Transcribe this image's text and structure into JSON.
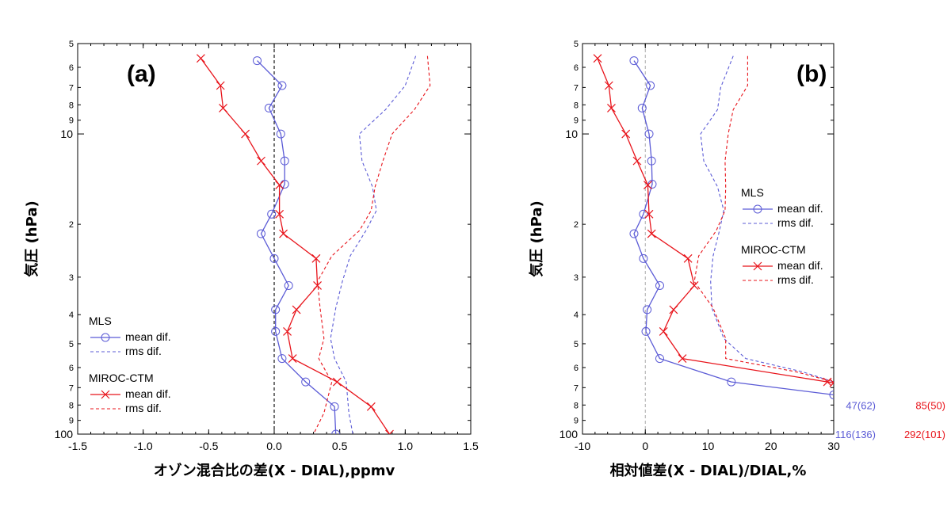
{
  "colors": {
    "mls": "#5b5bd6",
    "miroc": "#e8141b",
    "axis": "#000000"
  },
  "chart_data": [
    {
      "type": "line",
      "panel_label": "(a)",
      "xlabel": "オゾン混合比の差(X - DIAL),ppmv",
      "ylabel": "気圧 (hPa)",
      "xlim": [
        -1.5,
        1.5
      ],
      "x_ticks": [
        "-1.5",
        "-1.0",
        "-0.5",
        "0.0",
        "0.5",
        "1.0",
        "1.5"
      ],
      "x_tick_values": [
        -1.5,
        -1.0,
        -0.5,
        0.0,
        0.5,
        1.0,
        1.5
      ],
      "y_scale": "log",
      "ylim": [
        5,
        100
      ],
      "y_major_ticks": [
        "10",
        "100"
      ],
      "y_minor_ticks": [
        "5",
        "6",
        "7",
        "8",
        "9",
        "2",
        "3",
        "4",
        "5",
        "6",
        "7",
        "8",
        "9"
      ],
      "legend_position": "lower-left",
      "legend": {
        "group1": "MLS",
        "group1_mean": "mean dif.",
        "group1_rms": "rms dif.",
        "group2": "MIROC-CTM",
        "group2_mean": "mean dif.",
        "group2_rms": "rms dif."
      },
      "series": [
        {
          "name": "MLS mean dif.",
          "group": "mls",
          "style": "solid",
          "marker": "circle",
          "points": [
            [
              -0.13,
              5.7
            ],
            [
              0.06,
              6.9
            ],
            [
              -0.04,
              8.2
            ],
            [
              0.05,
              10.0
            ],
            [
              0.08,
              12.3
            ],
            [
              0.08,
              14.7
            ],
            [
              -0.02,
              18.5
            ],
            [
              -0.1,
              21.5
            ],
            [
              0.0,
              26.0
            ],
            [
              0.11,
              32.0
            ],
            [
              0.01,
              38.5
            ],
            [
              0.01,
              45.5
            ],
            [
              0.06,
              56.0
            ],
            [
              0.24,
              67.0
            ],
            [
              0.46,
              81.0
            ],
            [
              0.47,
              100.0
            ]
          ]
        },
        {
          "name": "MLS rms dif.",
          "group": "mls",
          "style": "dashed",
          "points": [
            [
              1.08,
              5.5
            ],
            [
              1.0,
              6.9
            ],
            [
              0.85,
              8.3
            ],
            [
              0.65,
              10.0
            ],
            [
              0.67,
              12.3
            ],
            [
              0.75,
              15.0
            ],
            [
              0.78,
              18.0
            ],
            [
              0.7,
              21.0
            ],
            [
              0.58,
              25.5
            ],
            [
              0.52,
              31.0
            ],
            [
              0.47,
              38.0
            ],
            [
              0.43,
              48.0
            ],
            [
              0.46,
              56.0
            ],
            [
              0.55,
              67.0
            ],
            [
              0.57,
              85.0
            ],
            [
              0.6,
              100.0
            ]
          ]
        },
        {
          "name": "MIROC-CTM mean dif.",
          "group": "miroc",
          "style": "solid",
          "marker": "cross",
          "points": [
            [
              -0.56,
              5.6
            ],
            [
              -0.41,
              6.9
            ],
            [
              -0.39,
              8.2
            ],
            [
              -0.22,
              10.0
            ],
            [
              -0.1,
              12.3
            ],
            [
              0.04,
              14.8
            ],
            [
              0.04,
              18.5
            ],
            [
              0.07,
              21.5
            ],
            [
              0.32,
              26.0
            ],
            [
              0.33,
              32.0
            ],
            [
              0.17,
              38.5
            ],
            [
              0.1,
              45.5
            ],
            [
              0.14,
              56.0
            ],
            [
              0.48,
              67.0
            ],
            [
              0.74,
              81.0
            ],
            [
              0.88,
              100.0
            ]
          ]
        },
        {
          "name": "MIROC-CTM rms dif.",
          "group": "miroc",
          "style": "dashed",
          "points": [
            [
              1.17,
              5.5
            ],
            [
              1.19,
              6.9
            ],
            [
              1.07,
              8.3
            ],
            [
              0.9,
              10.0
            ],
            [
              0.83,
              12.3
            ],
            [
              0.77,
              15.0
            ],
            [
              0.74,
              18.0
            ],
            [
              0.65,
              21.0
            ],
            [
              0.44,
              25.5
            ],
            [
              0.33,
              31.0
            ],
            [
              0.35,
              38.0
            ],
            [
              0.38,
              48.0
            ],
            [
              0.34,
              56.0
            ],
            [
              0.44,
              67.0
            ],
            [
              0.38,
              85.0
            ],
            [
              0.3,
              100.0
            ]
          ]
        }
      ]
    },
    {
      "type": "line",
      "panel_label": "(b)",
      "xlabel": "相対値差(X - DIAL)/DIAL,%",
      "ylabel": "気圧 (hPa)",
      "xlim": [
        -10,
        30
      ],
      "x_ticks": [
        "-10",
        "0",
        "10",
        "20",
        "30"
      ],
      "x_tick_values": [
        -10,
        0,
        10,
        20,
        30
      ],
      "y_scale": "log",
      "ylim": [
        5,
        100
      ],
      "y_major_ticks": [
        "10",
        "100"
      ],
      "y_minor_ticks": [
        "5",
        "6",
        "7",
        "8",
        "9",
        "2",
        "3",
        "4",
        "5",
        "6",
        "7",
        "8",
        "9"
      ],
      "legend_position": "right",
      "legend": {
        "group1": "MLS",
        "group1_mean": "mean dif.",
        "group1_rms": "rms dif.",
        "group2": "MIROC-CTM",
        "group2_mean": "mean dif.",
        "group2_rms": "rms dif."
      },
      "offscale_labels": {
        "mls_80": "47(62)",
        "miroc_80": "85(50)",
        "mls_100": "116(136)",
        "miroc_100": "292(101)"
      },
      "series": [
        {
          "name": "MLS mean dif.",
          "group": "mls",
          "style": "solid",
          "marker": "circle",
          "points": [
            [
              -1.8,
              5.7
            ],
            [
              0.8,
              6.9
            ],
            [
              -0.5,
              8.2
            ],
            [
              0.6,
              10.0
            ],
            [
              1.0,
              12.3
            ],
            [
              1.1,
              14.7
            ],
            [
              -0.3,
              18.5
            ],
            [
              -1.8,
              21.5
            ],
            [
              -0.3,
              26.0
            ],
            [
              2.3,
              32.0
            ],
            [
              0.3,
              38.5
            ],
            [
              0.1,
              45.5
            ],
            [
              2.3,
              56.0
            ],
            [
              13.7,
              67.0
            ],
            [
              30.0,
              74.0
            ]
          ]
        },
        {
          "name": "MLS rms dif.",
          "group": "mls",
          "style": "dashed",
          "points": [
            [
              14.0,
              5.5
            ],
            [
              12.0,
              7.0
            ],
            [
              11.5,
              8.3
            ],
            [
              8.8,
              10.0
            ],
            [
              9.3,
              12.3
            ],
            [
              11.5,
              15.0
            ],
            [
              12.5,
              18.0
            ],
            [
              11.8,
              21.0
            ],
            [
              10.8,
              25.5
            ],
            [
              10.4,
              31.0
            ],
            [
              10.6,
              38.0
            ],
            [
              12.5,
              48.0
            ],
            [
              16.0,
              56.0
            ],
            [
              25.0,
              62.0
            ],
            [
              30.0,
              67.0
            ]
          ]
        },
        {
          "name": "MIROC-CTM mean dif.",
          "group": "miroc",
          "style": "solid",
          "marker": "cross",
          "points": [
            [
              -7.6,
              5.6
            ],
            [
              -5.8,
              6.9
            ],
            [
              -5.4,
              8.2
            ],
            [
              -3.1,
              10.0
            ],
            [
              -1.3,
              12.3
            ],
            [
              0.4,
              14.8
            ],
            [
              0.6,
              18.5
            ],
            [
              1.0,
              21.5
            ],
            [
              6.8,
              26.0
            ],
            [
              7.8,
              32.0
            ],
            [
              4.5,
              38.5
            ],
            [
              2.9,
              45.5
            ],
            [
              5.9,
              56.0
            ],
            [
              29.0,
              67.0
            ],
            [
              30.0,
              67.5
            ]
          ]
        },
        {
          "name": "MIROC-CTM rms dif.",
          "group": "miroc",
          "style": "dashed",
          "points": [
            [
              16.3,
              5.5
            ],
            [
              16.3,
              6.9
            ],
            [
              14.0,
              8.3
            ],
            [
              13.2,
              10.0
            ],
            [
              12.7,
              12.3
            ],
            [
              12.8,
              15.0
            ],
            [
              12.7,
              18.0
            ],
            [
              11.3,
              21.0
            ],
            [
              8.5,
              25.5
            ],
            [
              7.8,
              31.0
            ],
            [
              10.8,
              38.0
            ],
            [
              12.8,
              48.0
            ],
            [
              12.8,
              56.0
            ],
            [
              24.0,
              62.0
            ],
            [
              30.0,
              67.0
            ]
          ]
        }
      ]
    }
  ]
}
